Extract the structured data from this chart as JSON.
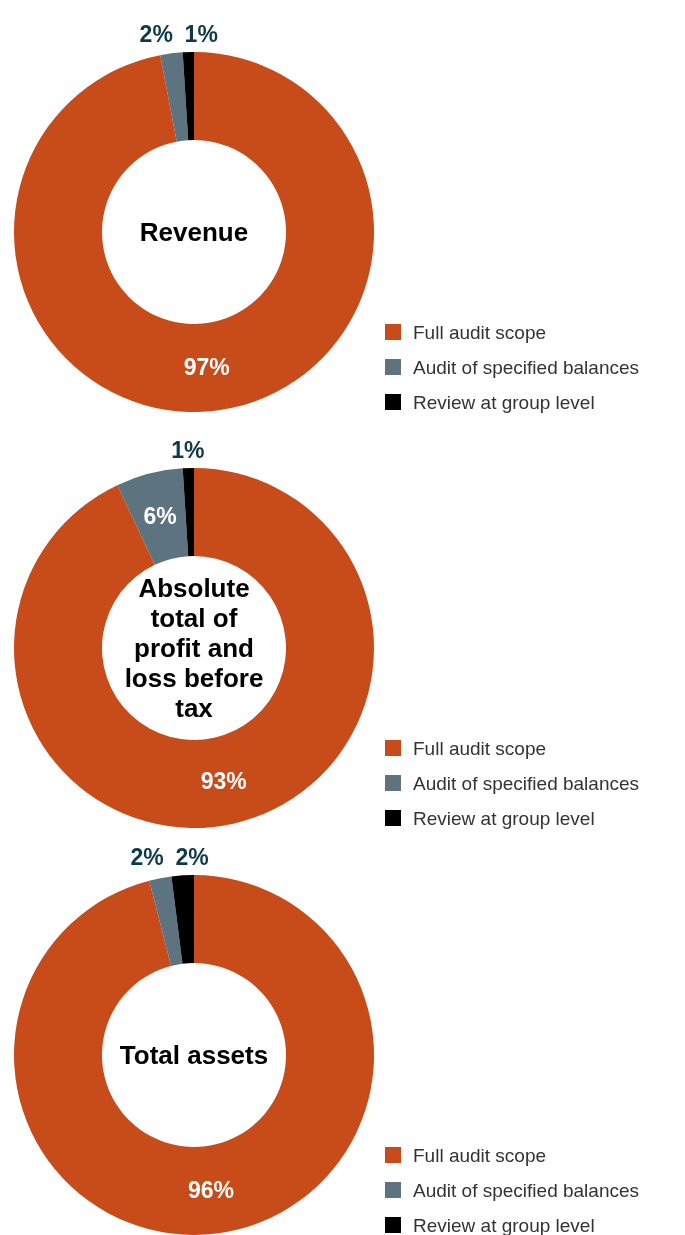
{
  "chart_data": [
    {
      "type": "donut",
      "title": "Revenue",
      "categories": [
        "Full audit scope",
        "Audit of specified balances",
        "Review at group level"
      ],
      "values": [
        97,
        2,
        1
      ],
      "value_labels": [
        "97%",
        "2%",
        "1%"
      ],
      "colors": [
        "#c84b1a",
        "#5d7380",
        "#000000"
      ],
      "legend": "bottom right"
    },
    {
      "type": "donut",
      "title": "Absolute total of profit and loss before tax",
      "categories": [
        "Full audit scope",
        "Audit of specified balances",
        "Review at group level"
      ],
      "values": [
        93,
        6,
        1
      ],
      "value_labels": [
        "93%",
        "6%",
        "1%"
      ],
      "colors": [
        "#c84b1a",
        "#5d7380",
        "#000000"
      ],
      "legend": "bottom right"
    },
    {
      "type": "donut",
      "title": "Total assets",
      "categories": [
        "Full audit scope",
        "Audit of specified balances",
        "Review at group level"
      ],
      "values": [
        96,
        2,
        2
      ],
      "value_labels": [
        "96%",
        "2%",
        "2%"
      ],
      "colors": [
        "#c84b1a",
        "#5d7380",
        "#000000"
      ],
      "legend": "bottom right"
    }
  ]
}
